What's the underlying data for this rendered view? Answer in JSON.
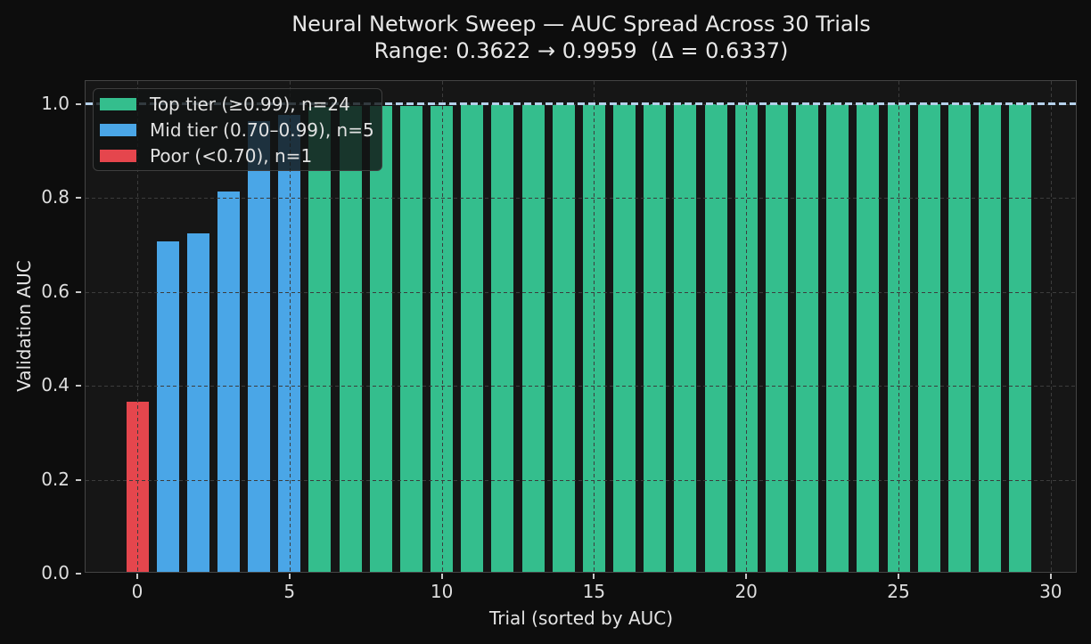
{
  "title": "Neural Network Sweep — AUC Spread Across 30 Trials",
  "subtitle": "Range: 0.3622 → 0.9959  (Δ = 0.6337)",
  "chart_data": {
    "type": "bar",
    "title": "Neural Network Sweep — AUC Spread Across 30 Trials",
    "subtitle": "Range: 0.3622 → 0.9959  (Δ = 0.6337)",
    "xlabel": "Trial (sorted by AUC)",
    "ylabel": "Validation AUC",
    "x": [
      0,
      1,
      2,
      3,
      4,
      5,
      6,
      7,
      8,
      9,
      10,
      11,
      12,
      13,
      14,
      15,
      16,
      17,
      18,
      19,
      20,
      21,
      22,
      23,
      24,
      25,
      26,
      27,
      28,
      29
    ],
    "values": [
      0.3622,
      0.703,
      0.721,
      0.81,
      0.96,
      0.972,
      0.99,
      0.9907,
      0.9913,
      0.9918,
      0.9923,
      0.9927,
      0.9931,
      0.9934,
      0.9937,
      0.994,
      0.9943,
      0.9945,
      0.9947,
      0.9949,
      0.9951,
      0.9952,
      0.9953,
      0.9954,
      0.9955,
      0.9956,
      0.9957,
      0.9958,
      0.9959,
      0.9959
    ],
    "ylim": [
      0,
      1.05
    ],
    "xlim": [
      -1.7,
      30.85
    ],
    "x_ticks": [
      0,
      5,
      10,
      15,
      20,
      25,
      30
    ],
    "x_tick_labels": [
      "0",
      "5",
      "10",
      "15",
      "20",
      "25",
      "30"
    ],
    "y_ticks": [
      0.0,
      0.2,
      0.4,
      0.6,
      0.8,
      1.0
    ],
    "y_tick_labels": [
      "0.0",
      "0.2",
      "0.4",
      "0.6",
      "0.8",
      "1.0"
    ],
    "grid": {
      "on": true,
      "style": "dashed"
    },
    "reference_line": {
      "value": 1.0,
      "color": "#b5d1eb",
      "style": "dashed"
    },
    "legend": {
      "position": "upper left",
      "entries": [
        {
          "label": "Top tier (≥0.99), n=24",
          "color": "#34be8d",
          "min": 0.99
        },
        {
          "label": "Mid tier (0.70–0.99), n=5",
          "color": "#4aa6e7",
          "min": 0.7
        },
        {
          "label": "Poor (<0.70), n=1",
          "color": "#e5464d",
          "min": 0.0
        }
      ]
    },
    "colors": {
      "figure_background": "#0d0d0d",
      "axes_background": "#161616"
    }
  }
}
